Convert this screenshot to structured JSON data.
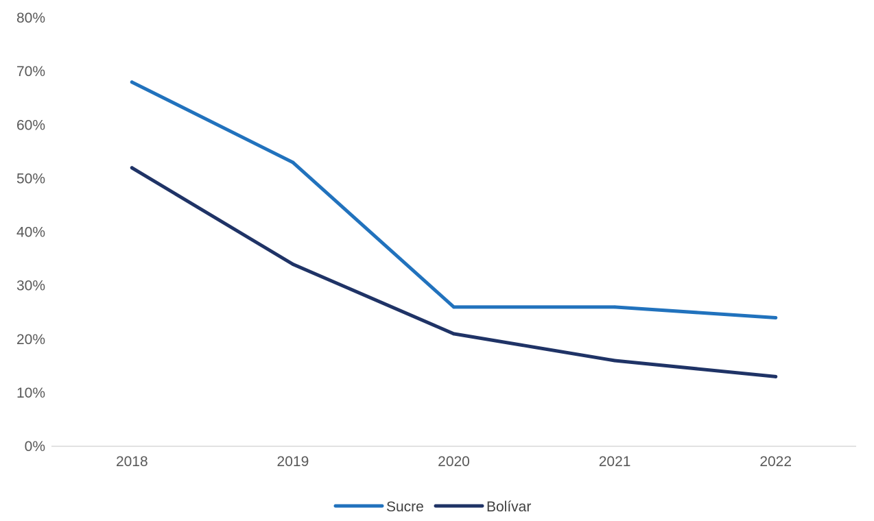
{
  "chart_data": {
    "type": "line",
    "title": "",
    "xlabel": "",
    "ylabel": "",
    "categories": [
      "2018",
      "2019",
      "2020",
      "2021",
      "2022"
    ],
    "series": [
      {
        "name": "Sucre",
        "values": [
          0.68,
          0.53,
          0.26,
          0.26,
          0.24
        ],
        "color": "#2172BD"
      },
      {
        "name": "Bolívar",
        "values": [
          0.52,
          0.34,
          0.21,
          0.16,
          0.13
        ],
        "color": "#1F3366"
      }
    ],
    "ylim": [
      0,
      0.8
    ],
    "yticks": [
      "0%",
      "10%",
      "20%",
      "30%",
      "40%",
      "50%",
      "60%",
      "70%",
      "80%"
    ],
    "grid": false,
    "legend_position": "bottom"
  }
}
